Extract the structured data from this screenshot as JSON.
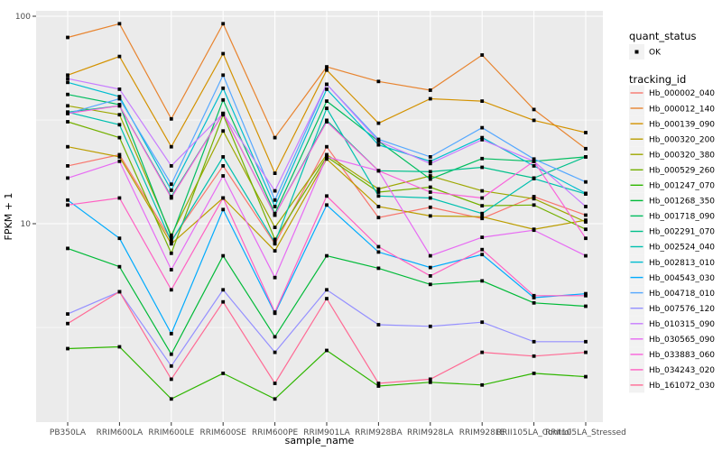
{
  "figure": {
    "panel_bg": "#EBEBEB",
    "grid_color": "#FFFFFF",
    "axis_text_color": "#4D4D4D",
    "point_color": "#000000",
    "legend_key_bg": "#F2F2F2"
  },
  "axes": {
    "y_label": "FPKM + 1",
    "x_label": "sample_name",
    "y_major_ticks": [
      {
        "label": "100",
        "value": 100
      },
      {
        "label": "10",
        "value": 10
      }
    ],
    "y_minor_values": [
      31.6,
      3.16
    ]
  },
  "legend": {
    "quant_title": "quant_status",
    "quant_item_label": "OK",
    "tracking_title": "tracking_id"
  },
  "chart_data": {
    "type": "line",
    "title": "",
    "xlabel": "sample_name",
    "ylabel": "FPKM + 1",
    "y_scale": "log10",
    "ylim": [
      1.1,
      107
    ],
    "grid": true,
    "legend_position": "right",
    "categories": [
      "PB350LA",
      "RRIM600LA",
      "RRIM600LE",
      "RRIM600SE",
      "RRIM600PE",
      "RRIM901LA",
      "RRIM928BA",
      "RRIM928LA",
      "RRIM928LE",
      "RRII105LA_Control",
      "RRII105LA_Stressed"
    ],
    "series": [
      {
        "name": "Hb_000002_040",
        "color": "#F8766D",
        "values": [
          19,
          21.5,
          8.3,
          19,
          8.0,
          23.5,
          10.7,
          12.0,
          10.6,
          13.5,
          11.0
        ]
      },
      {
        "name": "Hb_000012_140",
        "color": "#E8842F",
        "values": [
          79,
          92,
          32,
          92,
          26,
          57,
          48.5,
          44,
          65,
          35.5,
          23
        ]
      },
      {
        "name": "Hb_000139_090",
        "color": "#D39200",
        "values": [
          52,
          64,
          23.5,
          66,
          17.5,
          55,
          30.5,
          40,
          39,
          31.5,
          27.5
        ]
      },
      {
        "name": "Hb_000320_200",
        "color": "#BB9D00",
        "values": [
          23.5,
          21,
          8.0,
          13.3,
          7.4,
          20.5,
          12.1,
          10.9,
          10.8,
          9.4,
          10.4
        ]
      },
      {
        "name": "Hb_000320_380",
        "color": "#9DA700",
        "values": [
          37,
          33.5,
          8.8,
          28,
          9.6,
          21.5,
          14.7,
          17,
          14.4,
          13.2,
          10.2
        ]
      },
      {
        "name": "Hb_000529_260",
        "color": "#74B000",
        "values": [
          31,
          26,
          7.2,
          33.5,
          8.4,
          21,
          14.2,
          15,
          12.2,
          12.3,
          9.4
        ]
      },
      {
        "name": "Hb_001247_070",
        "color": "#2FB600",
        "values": [
          2.5,
          2.55,
          1.43,
          1.9,
          1.43,
          2.45,
          1.65,
          1.72,
          1.67,
          1.9,
          1.83
        ]
      },
      {
        "name": "Hb_001268_350",
        "color": "#00BA38",
        "values": [
          7.6,
          6.2,
          2.35,
          7.0,
          2.85,
          7.0,
          6.1,
          5.1,
          5.3,
          4.15,
          4.0
        ]
      },
      {
        "name": "Hb_001718_090",
        "color": "#00BD5F",
        "values": [
          42,
          37.5,
          8.6,
          39.5,
          11.2,
          39,
          25,
          16.4,
          20.6,
          20,
          21
        ]
      },
      {
        "name": "Hb_002291_070",
        "color": "#00C08B",
        "values": [
          34.5,
          37,
          13.5,
          34,
          11.0,
          31.5,
          18,
          17.8,
          18.7,
          16.6,
          21
        ]
      },
      {
        "name": "Hb_002524_040",
        "color": "#00C0AF",
        "values": [
          34.5,
          30,
          8.2,
          21,
          8.1,
          36,
          13.6,
          13.3,
          11.2,
          16.5,
          13.9
        ]
      },
      {
        "name": "Hb_002813_010",
        "color": "#00BDD0",
        "values": [
          48,
          41,
          14.5,
          45,
          12.1,
          44.5,
          24,
          20,
          26,
          19,
          14
        ]
      },
      {
        "name": "Hb_004543_030",
        "color": "#00ABFD",
        "values": [
          13,
          8.5,
          2.95,
          11.7,
          3.7,
          12.3,
          7.3,
          6.15,
          7.1,
          4.4,
          4.6
        ]
      },
      {
        "name": "Hb_004718_010",
        "color": "#56A8FF",
        "values": [
          34,
          40,
          15.5,
          52,
          13.0,
          47,
          25.5,
          21,
          29,
          20.5,
          15.9
        ]
      },
      {
        "name": "Hb_007576_120",
        "color": "#9590FF",
        "values": [
          3.67,
          4.7,
          2.06,
          4.8,
          2.4,
          4.8,
          3.26,
          3.2,
          3.35,
          2.7,
          2.7
        ]
      },
      {
        "name": "Hb_010315_090",
        "color": "#C77CFF",
        "values": [
          50,
          44.5,
          19,
          34,
          14.4,
          47,
          25,
          19.5,
          25.4,
          20,
          12.1
        ]
      },
      {
        "name": "Hb_030565_090",
        "color": "#E76BF3",
        "values": [
          16.6,
          20,
          6.0,
          17,
          5.5,
          21,
          18,
          7.0,
          8.6,
          9.3,
          7.0
        ]
      },
      {
        "name": "Hb_033883_060",
        "color": "#FA62DB",
        "values": [
          34,
          37,
          13.3,
          34,
          11,
          31,
          18,
          14.2,
          13.3,
          20,
          8.5
        ]
      },
      {
        "name": "Hb_034243_020",
        "color": "#FF61C3",
        "values": [
          12.3,
          13.3,
          4.8,
          13.3,
          3.75,
          13.6,
          7.75,
          5.6,
          7.5,
          4.5,
          4.5
        ]
      },
      {
        "name": "Hb_161072_030",
        "color": "#FF6A94",
        "values": [
          3.3,
          4.7,
          1.78,
          4.2,
          1.7,
          4.35,
          1.7,
          1.78,
          2.4,
          2.3,
          2.4
        ]
      }
    ]
  }
}
